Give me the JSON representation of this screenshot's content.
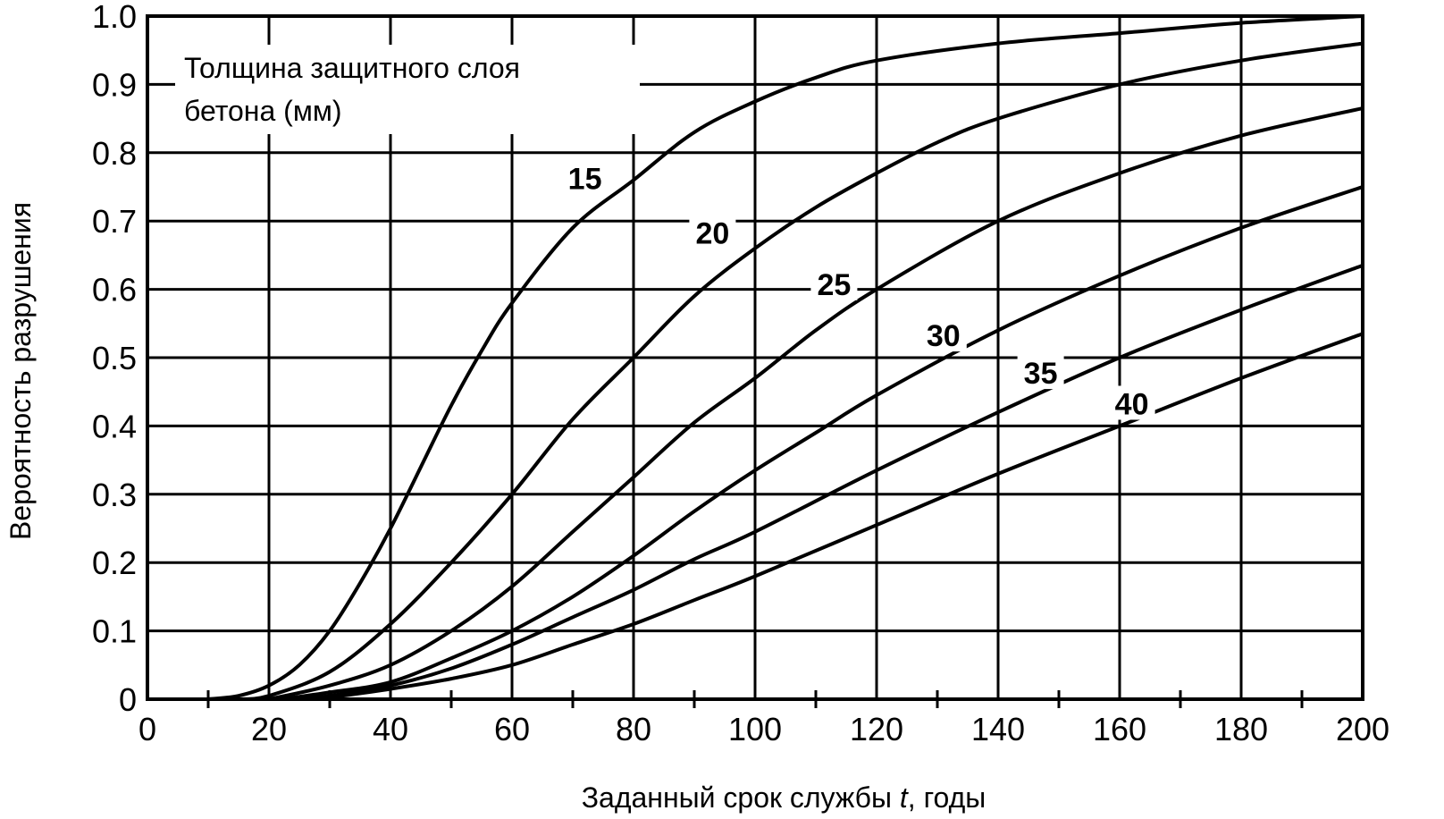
{
  "chart_data": {
    "type": "line",
    "xlabel": "Заданный срок службы ",
    "xlabel_var": "t",
    "xlabel_suffix": ", годы",
    "ylabel": "Вероятность разрушения",
    "legend_title_line1": "Толщина защитного слоя",
    "legend_title_line2": "бетона (мм)",
    "legend_placement": "top-left",
    "xlim": [
      0,
      200
    ],
    "ylim": [
      0,
      1.0
    ],
    "grid": true,
    "x_ticks": [
      "0",
      "20",
      "40",
      "60",
      "80",
      "100",
      "120",
      "140",
      "160",
      "180",
      "200"
    ],
    "y_ticks": [
      "0",
      "0.1",
      "0.2",
      "0.3",
      "0.4",
      "0.5",
      "0.6",
      "0.7",
      "0.8",
      "0.9",
      "1.0"
    ],
    "series": [
      {
        "name": "15",
        "x": [
          10,
          15,
          20,
          25,
          30,
          35,
          40,
          45,
          50,
          55,
          60,
          70,
          80,
          90,
          100,
          110,
          120,
          140,
          160,
          180,
          200
        ],
        "y": [
          0,
          0.005,
          0.02,
          0.05,
          0.1,
          0.17,
          0.25,
          0.34,
          0.43,
          0.51,
          0.58,
          0.69,
          0.76,
          0.83,
          0.875,
          0.91,
          0.935,
          0.96,
          0.975,
          0.99,
          1.0
        ]
      },
      {
        "name": "20",
        "x": [
          15,
          20,
          30,
          40,
          50,
          60,
          70,
          80,
          90,
          100,
          110,
          120,
          130,
          140,
          160,
          180,
          200
        ],
        "y": [
          0,
          0.005,
          0.04,
          0.11,
          0.2,
          0.3,
          0.41,
          0.5,
          0.59,
          0.66,
          0.72,
          0.77,
          0.815,
          0.85,
          0.9,
          0.935,
          0.96
        ]
      },
      {
        "name": "25",
        "x": [
          20,
          30,
          40,
          50,
          60,
          70,
          80,
          90,
          100,
          110,
          120,
          140,
          160,
          180,
          200
        ],
        "y": [
          0,
          0.02,
          0.05,
          0.1,
          0.165,
          0.245,
          0.325,
          0.405,
          0.47,
          0.54,
          0.6,
          0.7,
          0.77,
          0.825,
          0.865
        ]
      },
      {
        "name": "30",
        "x": [
          22,
          30,
          40,
          50,
          60,
          70,
          80,
          90,
          100,
          110,
          120,
          140,
          160,
          180,
          200
        ],
        "y": [
          0,
          0.01,
          0.025,
          0.06,
          0.1,
          0.15,
          0.21,
          0.275,
          0.335,
          0.39,
          0.445,
          0.54,
          0.62,
          0.69,
          0.75
        ]
      },
      {
        "name": "35",
        "x": [
          25,
          30,
          40,
          50,
          60,
          70,
          80,
          90,
          100,
          120,
          140,
          160,
          180,
          200
        ],
        "y": [
          0,
          0.005,
          0.02,
          0.045,
          0.08,
          0.12,
          0.16,
          0.205,
          0.245,
          0.335,
          0.42,
          0.5,
          0.57,
          0.635
        ]
      },
      {
        "name": "40",
        "x": [
          28,
          40,
          50,
          60,
          70,
          80,
          90,
          100,
          120,
          140,
          160,
          180,
          200
        ],
        "y": [
          0,
          0.015,
          0.03,
          0.05,
          0.08,
          0.11,
          0.145,
          0.18,
          0.255,
          0.33,
          0.4,
          0.47,
          0.535
        ]
      }
    ],
    "series_label_positions": [
      {
        "name": "15",
        "x": 72,
        "y": 0.76
      },
      {
        "name": "20",
        "x": 93,
        "y": 0.68
      },
      {
        "name": "25",
        "x": 113,
        "y": 0.605
      },
      {
        "name": "30",
        "x": 131,
        "y": 0.53
      },
      {
        "name": "35",
        "x": 147,
        "y": 0.475
      },
      {
        "name": "40",
        "x": 162,
        "y": 0.43
      }
    ]
  }
}
